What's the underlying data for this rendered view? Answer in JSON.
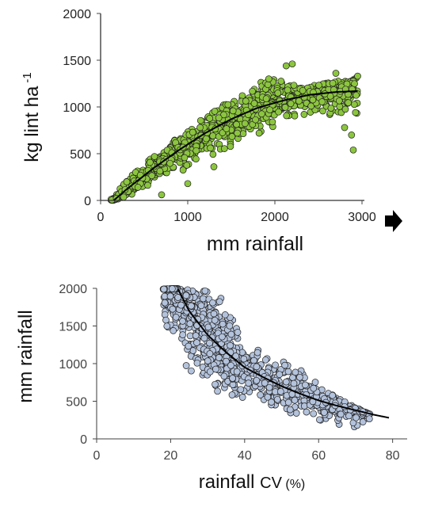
{
  "colors": {
    "top_point_fill": "#8cc63f",
    "bottom_point_fill": "#b4c3dc",
    "point_stroke": "#222222",
    "curve": "#000000",
    "arrow": "#000000"
  },
  "arrow_icon": "right-arrow-icon",
  "chart_data": [
    {
      "type": "scatter",
      "xlabel": "mm rainfall",
      "ylabel_main": "kg lint ha",
      "ylabel_sup": "-1",
      "xlim": [
        0,
        3000
      ],
      "ylim": [
        0,
        2000
      ],
      "xticks": [
        "0",
        "1000",
        "2000",
        "3000"
      ],
      "yticks": [
        "0",
        "500",
        "1000",
        "1500",
        "2000"
      ],
      "trend": {
        "type": "curve",
        "x": [
          150,
          300,
          600,
          900,
          1200,
          1500,
          1800,
          2100,
          2400,
          2700,
          2950
        ],
        "y": [
          0,
          120,
          340,
          540,
          720,
          870,
          990,
          1070,
          1130,
          1160,
          1170
        ]
      },
      "point_cloud": {
        "approx_count": 1100,
        "envelope": [
          {
            "x": 120,
            "y_min": 0,
            "y_max": 30
          },
          {
            "x": 300,
            "y_min": 30,
            "y_max": 220
          },
          {
            "x": 600,
            "y_min": 150,
            "y_max": 470
          },
          {
            "x": 900,
            "y_min": 280,
            "y_max": 680
          },
          {
            "x": 1200,
            "y_min": 420,
            "y_max": 900
          },
          {
            "x": 1500,
            "y_min": 560,
            "y_max": 1080
          },
          {
            "x": 1800,
            "y_min": 680,
            "y_max": 1250
          },
          {
            "x": 2000,
            "y_min": 760,
            "y_max": 1330
          },
          {
            "x": 2300,
            "y_min": 820,
            "y_max": 1200
          },
          {
            "x": 2600,
            "y_min": 850,
            "y_max": 1260
          },
          {
            "x": 2950,
            "y_min": 820,
            "y_max": 1330
          }
        ],
        "notable_points": [
          {
            "x": 2200,
            "y": 1460
          },
          {
            "x": 2130,
            "y": 1440
          },
          {
            "x": 1930,
            "y": 1300
          },
          {
            "x": 2700,
            "y": 1360
          },
          {
            "x": 2950,
            "y": 1330
          },
          {
            "x": 2880,
            "y": 700
          },
          {
            "x": 2900,
            "y": 540
          },
          {
            "x": 2800,
            "y": 780
          },
          {
            "x": 700,
            "y": 60
          },
          {
            "x": 1000,
            "y": 180
          },
          {
            "x": 1300,
            "y": 360
          }
        ]
      }
    },
    {
      "type": "scatter",
      "xlabel_main": "rainfall ",
      "xlabel_cv": "CV",
      "xlabel_unit": " (%)",
      "ylabel": "mm rainfall",
      "xlim": [
        0,
        85
      ],
      "ylim": [
        0,
        2000
      ],
      "xticks": [
        "0",
        "20",
        "40",
        "60",
        "80"
      ],
      "yticks": [
        "0",
        "500",
        "1000",
        "1500",
        "2000"
      ],
      "trend": {
        "type": "curve",
        "x": [
          22,
          25,
          30,
          35,
          40,
          45,
          50,
          55,
          60,
          65,
          70,
          75,
          79
        ],
        "y": [
          1990,
          1700,
          1380,
          1150,
          950,
          820,
          700,
          600,
          510,
          440,
          380,
          320,
          280
        ]
      },
      "point_cloud": {
        "approx_count": 1000,
        "envelope": [
          {
            "x": 17,
            "y_min": 1550,
            "y_max": 1980
          },
          {
            "x": 20,
            "y_min": 950,
            "y_max": 2000
          },
          {
            "x": 25,
            "y_min": 700,
            "y_max": 2000
          },
          {
            "x": 30,
            "y_min": 650,
            "y_max": 1990
          },
          {
            "x": 35,
            "y_min": 600,
            "y_max": 1870
          },
          {
            "x": 40,
            "y_min": 520,
            "y_max": 1400
          },
          {
            "x": 45,
            "y_min": 450,
            "y_max": 1250
          },
          {
            "x": 50,
            "y_min": 380,
            "y_max": 1200
          },
          {
            "x": 55,
            "y_min": 300,
            "y_max": 1050
          },
          {
            "x": 60,
            "y_min": 200,
            "y_max": 700
          },
          {
            "x": 65,
            "y_min": 130,
            "y_max": 550
          },
          {
            "x": 70,
            "y_min": 110,
            "y_max": 420
          },
          {
            "x": 79,
            "y_min": 150,
            "y_max": 200
          }
        ]
      }
    }
  ]
}
